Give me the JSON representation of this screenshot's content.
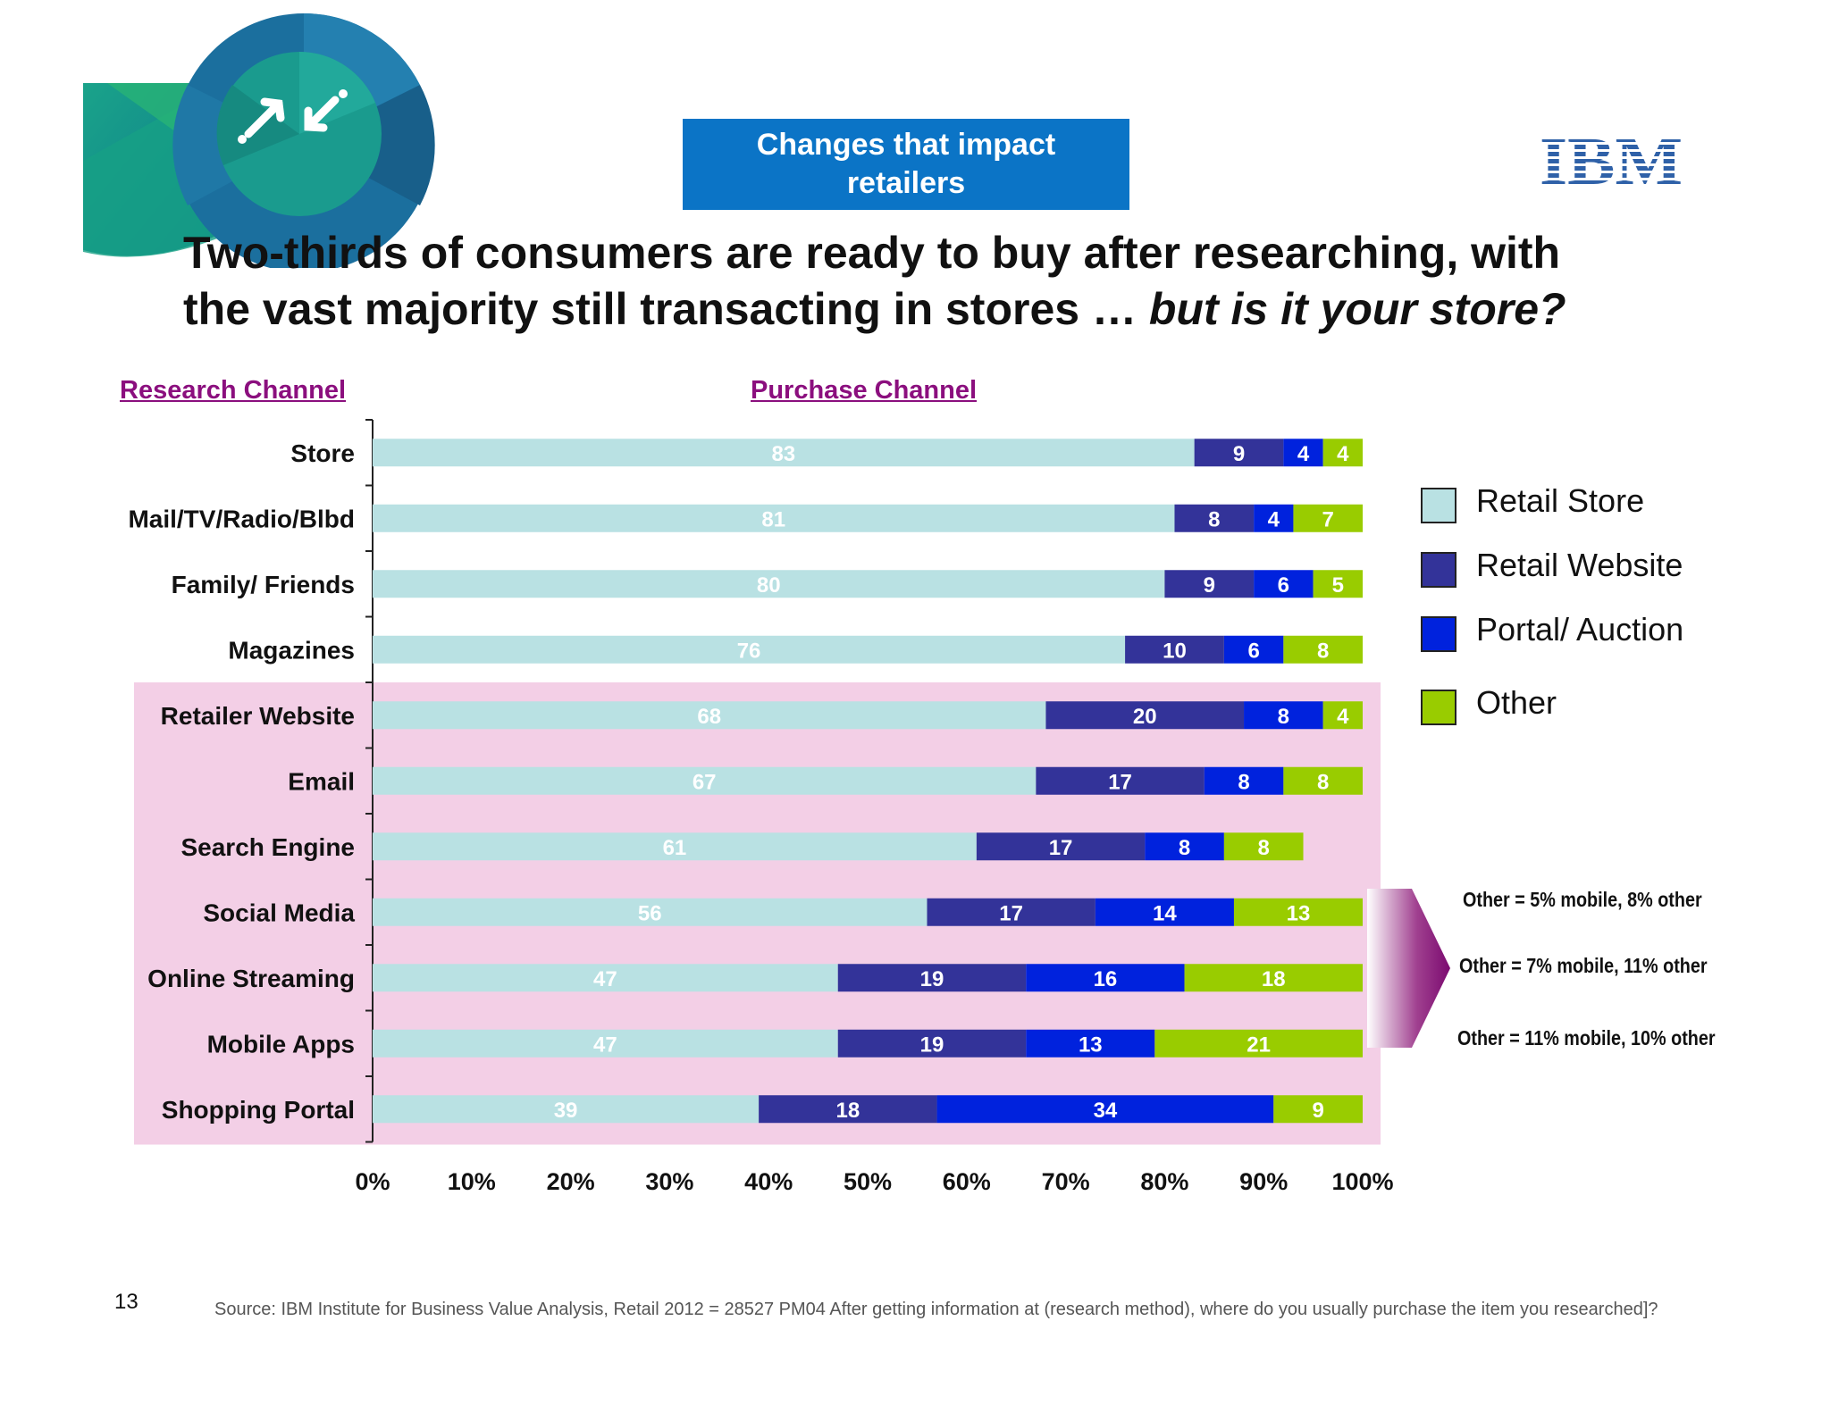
{
  "header_box": {
    "line1": "Changes that impact",
    "line2": "retailers"
  },
  "logo_text": "IBM",
  "headline": {
    "line1": "Two-thirds of consumers are ready to buy after researching, with",
    "line2_plain": "the vast majority still transacting in stores … ",
    "line2_italic": "but is it your store?"
  },
  "section_heads": {
    "research": "Research Channel",
    "purchase": "Purchase Channel"
  },
  "colors": {
    "retail_store": "#b9e1e3",
    "retail_website": "#333399",
    "portal_auction": "#0022dd",
    "other": "#99cc00",
    "highlight_bg": "#f3cfe6",
    "accent": "#8b0f7e",
    "header_blue": "#0b74c6"
  },
  "chart_data": {
    "type": "bar",
    "orientation": "horizontal",
    "stacked": true,
    "percent_stacked": true,
    "categories": [
      "Store",
      "Mail/TV/Radio/Blbd",
      "Family/ Friends",
      "Magazines",
      "Retailer Website",
      "Email",
      "Search Engine",
      "Social Media",
      "Online Streaming",
      "Mobile Apps",
      "Shopping Portal"
    ],
    "series": [
      {
        "name": "Retail Store",
        "color": "#b9e1e3",
        "values": [
          83,
          81,
          80,
          76,
          68,
          67,
          61,
          56,
          47,
          47,
          39
        ]
      },
      {
        "name": "Retail Website",
        "color": "#333399",
        "values": [
          9,
          8,
          9,
          10,
          20,
          17,
          17,
          17,
          19,
          19,
          18
        ]
      },
      {
        "name": "Portal/ Auction",
        "color": "#0022dd",
        "values": [
          4,
          4,
          6,
          6,
          8,
          8,
          8,
          14,
          16,
          13,
          34
        ]
      },
      {
        "name": "Other",
        "color": "#99cc00",
        "values": [
          4,
          7,
          5,
          8,
          4,
          8,
          8,
          13,
          18,
          21,
          9
        ]
      }
    ],
    "highlighted_categories": [
      "Retailer Website",
      "Email",
      "Search Engine",
      "Social Media",
      "Online Streaming",
      "Mobile Apps",
      "Shopping Portal"
    ],
    "x_ticks": [
      "0%",
      "10%",
      "20%",
      "30%",
      "40%",
      "50%",
      "60%",
      "70%",
      "80%",
      "90%",
      "100%"
    ],
    "xlim": [
      0,
      100
    ],
    "grid": false,
    "legend_position": "right"
  },
  "notes": [
    "Other = 5% mobile, 8% other",
    "Other = 7% mobile, 11% other",
    "Other = 11% mobile, 10% other"
  ],
  "page_number": "13",
  "source": "Source:  IBM Institute for Business Value Analysis, Retail 2012 = 28527  PM04 After getting information at (research method), where do you usually purchase the item you researched]?"
}
